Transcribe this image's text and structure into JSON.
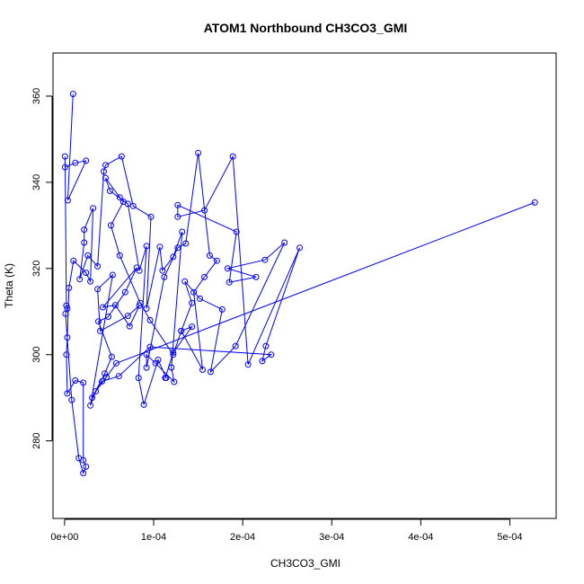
{
  "chart_data": {
    "type": "line",
    "title": "ATOM1 Northbound CH3CO3_GMI",
    "xlabel": "CH3CO3_GMI",
    "ylabel": "Theta (K)",
    "xlim": [
      -1.3e-05,
      0.000552
    ],
    "ylim": [
      262,
      370
    ],
    "x_ticks": [
      0,
      0.0001,
      0.0002,
      0.0003,
      0.0004,
      0.0005
    ],
    "x_tick_labels": [
      "0e+00",
      "1e-04",
      "2e-04",
      "3e-04",
      "4e-04",
      "5e-04"
    ],
    "y_ticks": [
      280,
      300,
      320,
      340,
      360
    ],
    "y_tick_labels": [
      "280",
      "300",
      "320",
      "340",
      "360"
    ],
    "grid": false,
    "marker": "open-circle",
    "colors": {
      "series": "#0000ff",
      "axes": "#000000",
      "background": "#ffffff"
    },
    "series": [
      {
        "x": [
          9.5e-06,
          3.5e-06,
          2.4e-05,
          1.2e-05,
          5e-07,
          5e-07,
          2e-06,
          3e-06,
          1e-06,
          8e-06,
          1.6e-05,
          2.1e-05,
          2.4e-05,
          2.1e-05,
          2.1e-05,
          1.2e-05,
          3e-06,
          2e-06,
          3e-06,
          5e-06,
          1e-05,
          2.4e-05,
          2.9e-05,
          3.2e-05,
          2.2e-05,
          2.2e-05,
          1.7e-05,
          2.6e-05,
          3.7e-05,
          4.4e-05,
          4.6e-05,
          6.4e-05,
          7.7e-05,
          9.7e-05,
          9.2e-05,
          0.000107,
          0.00011,
          0.000122,
          0.000132,
          0.00012,
          0.000123,
          0.000102,
          9.2e-05,
          9.2e-05,
          0.000112,
          0.000127,
          0.000136,
          0.00015,
          0.000163,
          0.000171,
          0.000157,
          0.000145,
          0.000155,
          0.000131,
          0.000143,
          0.000122,
          0.000113,
          0.000114,
          0.000105,
          8.9e-05,
          8.3e-05,
          9.2e-05,
          8.4e-05,
          7.1e-05,
          5.1e-05,
          4.6e-05,
          6.2e-05,
          6.6e-05,
          5.2e-05,
          6.2e-05,
          8.5e-05,
          9.6e-05,
          0.000122,
          0.000131,
          0.000143,
          0.000135,
          0.000152,
          0.000177,
          0.000164,
          0.000192,
          0.000247,
          0.000225,
          0.000183,
          0.000215,
          0.000185,
          0.000193,
          0.000127,
          0.000127,
          0.000157,
          0.000189,
          0.000206,
          0.000264,
          0.000226,
          0.000222,
          0.000232,
          9.6e-05,
          6.1e-05,
          4.2e-05,
          3.1e-05,
          4.5e-05,
          5.3e-05,
          3.8e-05,
          4.9e-05,
          6.8e-05,
          8.1e-05,
          4.3e-05,
          5.7e-05,
          7.3e-05,
          8.4e-05,
          7.1e-05,
          4e-05,
          3.7e-05,
          5.4e-05,
          2.9e-05,
          3.5e-05,
          4.7e-05,
          5.8e-05,
          0.000528
        ],
        "y": [
          360.5,
          335.8,
          345.0,
          344.5,
          343.5,
          346.0,
          311.4,
          310.7,
          309.5,
          289.5,
          276.0,
          272.5,
          274.0,
          275.5,
          293.5,
          294.0,
          291.0,
          300.0,
          304.0,
          315.5,
          321.8,
          319.0,
          317.0,
          334.0,
          329.0,
          326.0,
          317.5,
          323.0,
          320.5,
          342.5,
          344.0,
          346.0,
          334.5,
          332.0,
          310.7,
          325.0,
          319.5,
          322.7,
          328.5,
          297.0,
          293.7,
          298.0,
          300.0,
          297.0,
          318.0,
          324.8,
          325.8,
          346.8,
          323.0,
          321.8,
          318.0,
          314.5,
          296.5,
          305.5,
          306.5,
          300.5,
          294.6,
          294.6,
          298.8,
          288.4,
          294.6,
          325.2,
          319.5,
          335.0,
          338.0,
          341.0,
          336.5,
          335.5,
          330.0,
          323.0,
          312.0,
          308.0,
          300.0,
          305.5,
          312.0,
          317.0,
          313.0,
          310.5,
          296.0,
          302.0,
          326.0,
          322.0,
          320.0,
          318.0,
          316.8,
          328.5,
          334.7,
          332.0,
          333.5,
          346.0,
          297.7,
          324.8,
          302.0,
          298.5,
          300.0,
          301.8,
          295.0,
          293.8,
          290.0,
          295.6,
          299.5,
          307.7,
          308.8,
          314.5,
          320.2,
          311.0,
          311.5,
          306.6,
          311.4,
          309.0,
          305.5,
          315.2,
          318.5,
          288.2,
          291.5,
          294.8,
          298.0,
          335.3
        ]
      }
    ]
  }
}
